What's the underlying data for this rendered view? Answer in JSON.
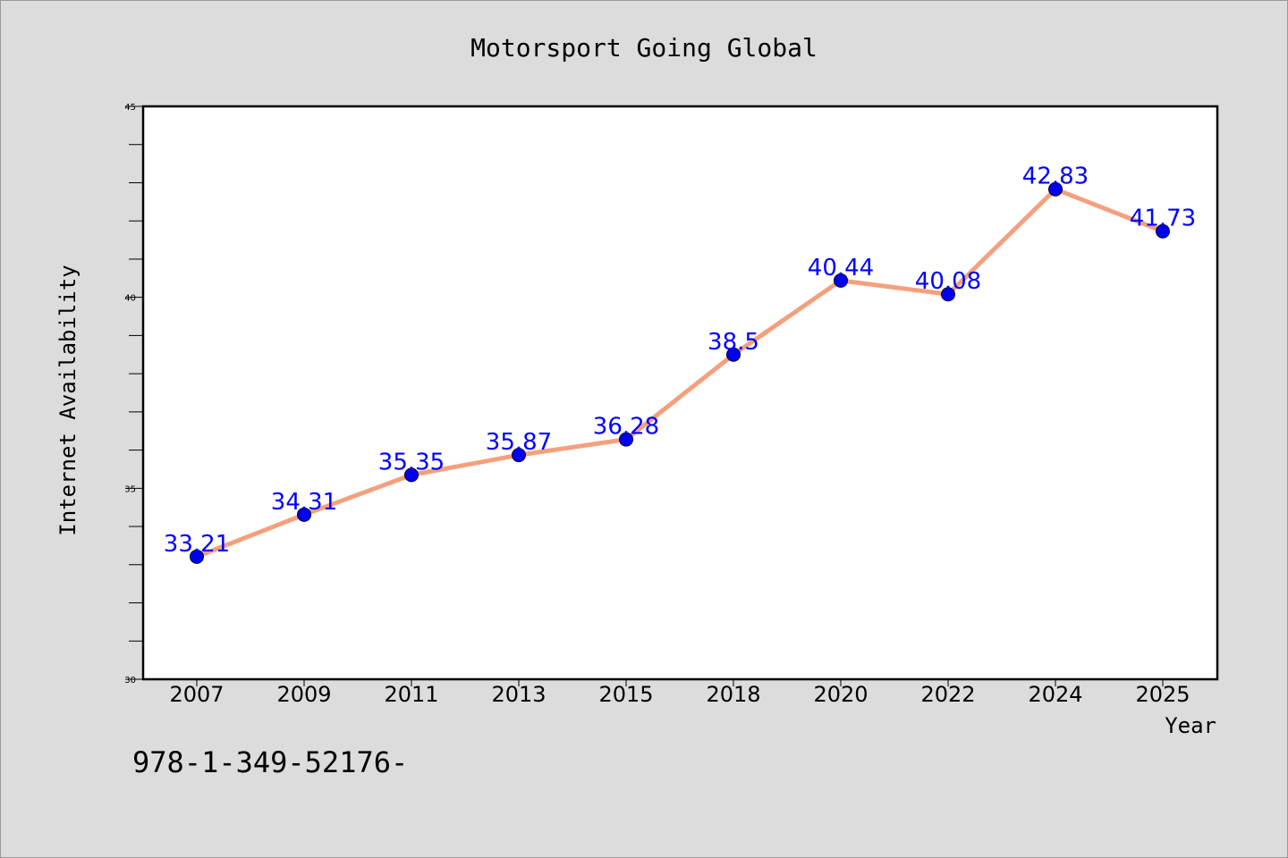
{
  "chart_data": {
    "type": "line",
    "title": "Motorsport Going Global",
    "xlabel": "Year",
    "ylabel": "Internet Availability",
    "categories": [
      "2007",
      "2009",
      "2011",
      "2013",
      "2015",
      "2018",
      "2020",
      "2022",
      "2024",
      "2025"
    ],
    "series": [
      {
        "values": [
          33.21,
          34.31,
          35.35,
          35.87,
          36.28,
          38.5,
          40.44,
          40.08,
          42.83,
          41.73
        ],
        "labels": [
          "33.21",
          "34.31",
          "35.35",
          "35.87",
          "36.28",
          "38.5",
          "40.44",
          "40.08",
          "42.83",
          "41.73"
        ],
        "line_color": "#f4a07e",
        "marker_color": "#0000ee"
      }
    ],
    "ylim": [
      30,
      45
    ],
    "yticks": [
      "30",
      "35",
      "40",
      "45"
    ],
    "grid": false
  },
  "footer_text": "978-1-349-52176-",
  "colors": {
    "background": "#dcdcdc",
    "plot_background": "#ffffff",
    "data_label": "#0000ff"
  }
}
